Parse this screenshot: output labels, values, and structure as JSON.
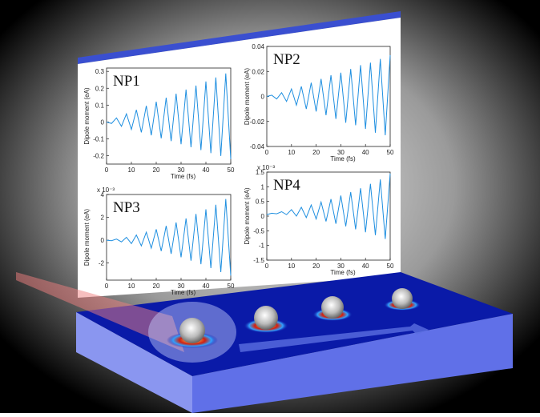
{
  "chart_data": [
    {
      "type": "line",
      "title": "NP1",
      "xlabel": "Time (fs)",
      "ylabel": "Dipole moment (eA)",
      "color": "#1f8fe0",
      "x": [
        0,
        2,
        4,
        6,
        8,
        10,
        12,
        14,
        16,
        18,
        20,
        22,
        24,
        26,
        28,
        30,
        32,
        34,
        36,
        38,
        40,
        42,
        44,
        46,
        48,
        50
      ],
      "values": [
        0,
        -0.009,
        0.024,
        -0.026,
        0.048,
        -0.044,
        0.072,
        -0.062,
        0.096,
        -0.079,
        0.12,
        -0.097,
        0.144,
        -0.114,
        0.168,
        -0.132,
        0.192,
        -0.15,
        0.216,
        -0.167,
        0.24,
        -0.185,
        0.264,
        -0.202,
        0.288,
        -0.22
      ],
      "xlim": [
        0,
        50
      ],
      "xticks": [
        0,
        10,
        20,
        30,
        40,
        50
      ],
      "ylim": [
        -0.25,
        0.32
      ],
      "yticks": [
        -0.2,
        -0.1,
        0,
        0.1,
        0.2,
        0.3
      ]
    },
    {
      "type": "line",
      "title": "NP2",
      "xlabel": "Time (fs)",
      "ylabel": "Dipole moment (eA)",
      "color": "#1f8fe0",
      "x": [
        0,
        2,
        4,
        6,
        8,
        10,
        12,
        14,
        16,
        18,
        20,
        22,
        24,
        26,
        28,
        30,
        32,
        34,
        36,
        38,
        40,
        42,
        44,
        46,
        48,
        50
      ],
      "values": [
        0,
        0.001,
        -0.002,
        0.003,
        -0.004,
        0.006,
        -0.007,
        0.008,
        -0.01,
        0.011,
        -0.012,
        0.014,
        -0.015,
        0.017,
        -0.018,
        0.019,
        -0.021,
        0.022,
        -0.023,
        0.025,
        -0.026,
        0.027,
        -0.029,
        0.03,
        -0.031,
        0.033
      ],
      "xlim": [
        0,
        50
      ],
      "xticks": [
        0,
        10,
        20,
        30,
        40,
        50
      ],
      "ylim": [
        -0.04,
        0.04
      ],
      "yticks": [
        -0.04,
        -0.02,
        0,
        0.02,
        0.04
      ]
    },
    {
      "type": "line",
      "title": "NP3",
      "xlabel": "Time (fs)",
      "ylabel": "Dipole moment (eA)",
      "y_scale_label": "x 10⁻³",
      "color": "#1f8fe0",
      "x": [
        0,
        2,
        4,
        6,
        8,
        10,
        12,
        14,
        16,
        18,
        20,
        22,
        24,
        26,
        28,
        30,
        32,
        34,
        36,
        38,
        40,
        42,
        44,
        46,
        48,
        50
      ],
      "values": [
        0,
        -0.05,
        0.1,
        -0.15,
        0.25,
        -0.3,
        0.45,
        -0.5,
        0.7,
        -0.7,
        0.95,
        -0.95,
        1.25,
        -1.2,
        1.55,
        -1.5,
        1.9,
        -1.8,
        2.3,
        -2.1,
        2.7,
        -2.45,
        3.1,
        -2.8,
        3.6,
        -3.1
      ],
      "xlim": [
        0,
        50
      ],
      "xticks": [
        0,
        10,
        20,
        30,
        40,
        50
      ],
      "ylim": [
        -3.5,
        4
      ],
      "yticks": [
        -2,
        0,
        2,
        4
      ]
    },
    {
      "type": "line",
      "title": "NP4",
      "xlabel": "Time (fs)",
      "ylabel": "Dipole moment (eA)",
      "y_scale_label": "x 10⁻³",
      "color": "#1f8fe0",
      "x": [
        0,
        2,
        4,
        6,
        8,
        10,
        12,
        14,
        16,
        18,
        20,
        22,
        24,
        26,
        28,
        30,
        32,
        34,
        36,
        38,
        40,
        42,
        44,
        46,
        48,
        50
      ],
      "values": [
        0.05,
        0.1,
        0.08,
        0.15,
        0.05,
        0.22,
        0,
        0.3,
        -0.05,
        0.38,
        -0.1,
        0.48,
        -0.18,
        0.58,
        -0.26,
        0.7,
        -0.35,
        0.82,
        -0.45,
        0.95,
        -0.55,
        1.1,
        -0.65,
        1.25,
        -0.78,
        1.45
      ],
      "xlim": [
        0,
        50
      ],
      "xticks": [
        0,
        10,
        20,
        30,
        40,
        50
      ],
      "ylim": [
        -1.5,
        1.5
      ],
      "yticks": [
        -1.5,
        -1,
        -0.5,
        0,
        0.5,
        1,
        1.5
      ]
    }
  ]
}
